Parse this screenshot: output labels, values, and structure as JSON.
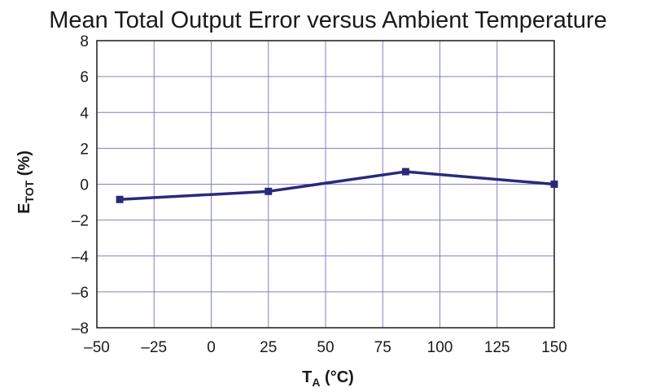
{
  "chart_data": {
    "type": "line",
    "title": "Mean Total Output Error versus Ambient Temperature",
    "xlabel": {
      "main": "T",
      "sub": "A",
      "rest": " (°C)"
    },
    "ylabel": {
      "main": "E",
      "sub": "TOT",
      "rest": " (%)"
    },
    "xlim": [
      -50,
      150
    ],
    "ylim": [
      -8,
      8
    ],
    "xticks": [
      -50,
      -25,
      0,
      25,
      50,
      75,
      100,
      125,
      150
    ],
    "xtick_labels": [
      "–50",
      "–25",
      "0",
      "25",
      "50",
      "75",
      "100",
      "125",
      "150"
    ],
    "yticks": [
      8,
      6,
      4,
      2,
      0,
      -2,
      -4,
      -6,
      -8
    ],
    "ytick_labels": [
      "8",
      "6",
      "4",
      "2",
      "0",
      "–2",
      "–4",
      "–6",
      "–8"
    ],
    "grid": true,
    "series": [
      {
        "x": [
          -40,
          25,
          85,
          150
        ],
        "y": [
          -0.85,
          -0.4,
          0.7,
          0.0
        ],
        "color": "#2a2a7a",
        "marker": "square"
      }
    ]
  }
}
